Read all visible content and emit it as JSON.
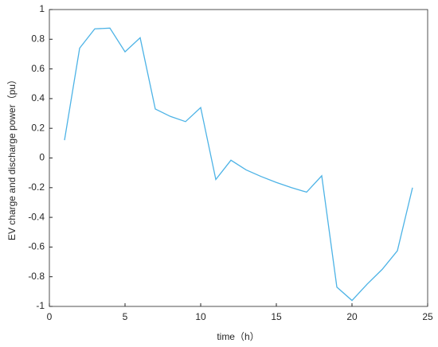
{
  "chart_data": {
    "type": "line",
    "x_label": "time（h）",
    "y_label": "EV charge and discharge power（pu）",
    "x": [
      1,
      2,
      3,
      4,
      5,
      6,
      7,
      8,
      9,
      10,
      11,
      12,
      13,
      14,
      15,
      16,
      17,
      18,
      19,
      20,
      21,
      22,
      23,
      24
    ],
    "series": [
      {
        "color": "#4db3e6",
        "values": [
          0.12,
          0.74,
          0.87,
          0.875,
          0.715,
          0.81,
          0.33,
          0.28,
          0.245,
          0.34,
          -0.145,
          -0.015,
          -0.08,
          -0.125,
          -0.165,
          -0.2,
          -0.23,
          -0.12,
          -0.87,
          -0.96,
          -0.85,
          -0.75,
          -0.625,
          -0.2
        ]
      }
    ],
    "xlim": [
      0,
      25
    ],
    "ylim": [
      -1,
      1
    ],
    "xticks": [
      0,
      5,
      10,
      15,
      20,
      25
    ],
    "yticks": [
      -1,
      -0.8,
      -0.6,
      -0.4,
      -0.2,
      0,
      0.2,
      0.4,
      0.6,
      0.8,
      1
    ]
  }
}
